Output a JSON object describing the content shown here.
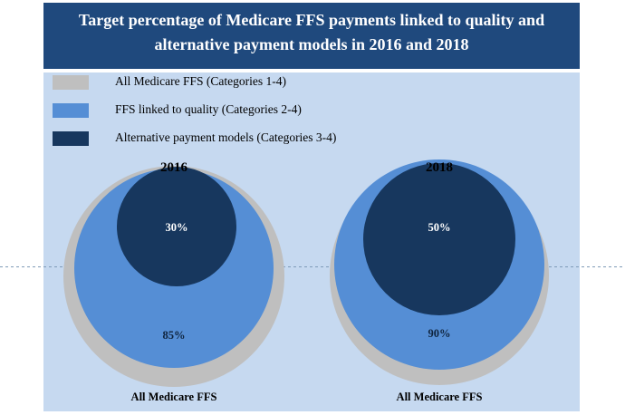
{
  "header": {
    "title_line1": "Target percentage of Medicare FFS payments linked to quality and",
    "title_line2": "alternative payment models in 2016 and 2018"
  },
  "colors": {
    "header_bg": "#1F497D",
    "panel_bg": "#C6D9F0",
    "all_ffs": "#BFBFBF",
    "quality": "#558ED5",
    "apm": "#17375E"
  },
  "legend": [
    {
      "label": "All Medicare FFS (Categories 1-4)",
      "color": "#BFBFBF"
    },
    {
      "label": "FFS linked to quality (Categories 2-4)",
      "color": "#558ED5"
    },
    {
      "label": "Alternative payment models (Categories 3-4)",
      "color": "#17375E"
    }
  ],
  "chart_data": {
    "type": "nested-circle",
    "title": "Target percentage of Medicare FFS payments linked to quality and alternative payment models in 2016 and 2018",
    "legend_position": "top-left",
    "series_names": [
      "All Medicare FFS (Categories 1-4)",
      "FFS linked to quality (Categories 2-4)",
      "Alternative payment models (Categories 3-4)"
    ],
    "groups": [
      {
        "year": "2016",
        "all_ffs": 100,
        "quality": 85,
        "apm": 30,
        "quality_label": "85%",
        "apm_label": "30%",
        "base_label": "All Medicare FFS"
      },
      {
        "year": "2018",
        "all_ffs": 100,
        "quality": 90,
        "apm": 50,
        "quality_label": "90%",
        "apm_label": "50%",
        "base_label": "All Medicare FFS"
      }
    ]
  }
}
